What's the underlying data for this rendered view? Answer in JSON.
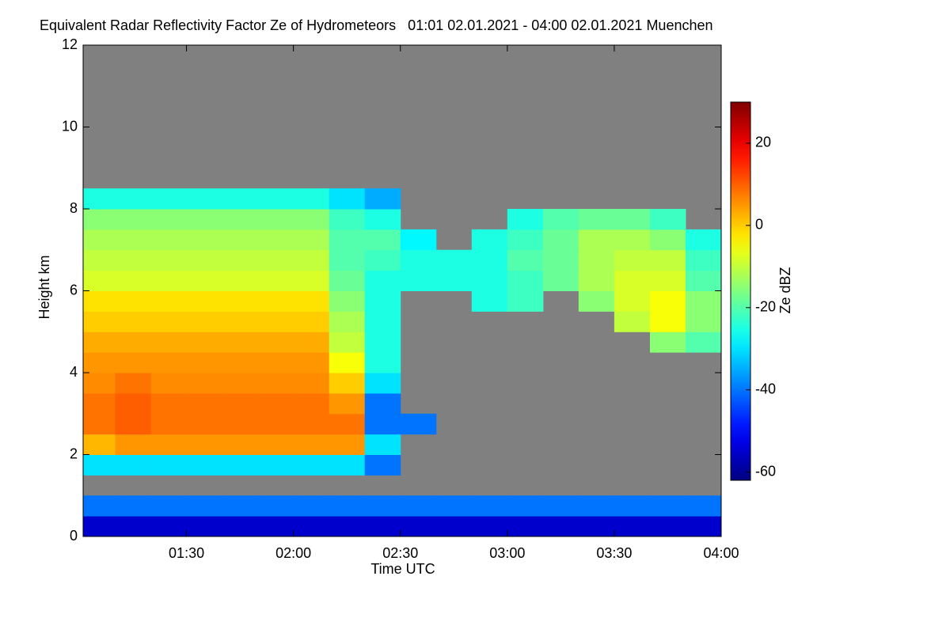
{
  "chart_data": {
    "type": "heatmap",
    "title": "Equivalent Radar Reflectivity Factor Ze of Hydrometeors   01:01 02.01.2021 - 04:00 02.01.2021 Muenchen",
    "xlabel": "Time UTC",
    "ylabel": "Height km",
    "colorbar_label": "Ze dBZ",
    "colormap": "jet",
    "missing_color": "#808080",
    "xlim": [
      1.0167,
      4.0
    ],
    "ylim": [
      0,
      12
    ],
    "xticks": [
      {
        "value": 1.5,
        "label": "01:30"
      },
      {
        "value": 2.0,
        "label": "02:00"
      },
      {
        "value": 2.5,
        "label": "02:30"
      },
      {
        "value": 3.0,
        "label": "03:00"
      },
      {
        "value": 3.5,
        "label": "03:30"
      },
      {
        "value": 4.0,
        "label": "04:00"
      }
    ],
    "yticks": [
      0,
      2,
      4,
      6,
      8,
      10,
      12
    ],
    "clim": [
      -62,
      30
    ],
    "cticks": [
      -60,
      -40,
      -20,
      0,
      20
    ],
    "xbins": [
      1.0167,
      1.1667,
      1.3333,
      1.5,
      1.6667,
      1.8333,
      2.0,
      2.1667,
      2.3333,
      2.5,
      2.6667,
      2.8333,
      3.0,
      3.1667,
      3.3333,
      3.5,
      3.6667,
      3.8333,
      4.0
    ],
    "ybins": [
      0,
      0.5,
      1,
      1.5,
      2,
      2.5,
      3,
      3.5,
      4,
      4.5,
      5,
      5.5,
      6,
      6.5,
      7,
      7.5,
      8,
      8.5,
      9
    ],
    "z": [
      [
        -55,
        -55,
        -55,
        -55,
        -55,
        -55,
        -55,
        -55,
        -55,
        -55,
        -55,
        -55,
        -55,
        -55,
        -55,
        -55,
        -55,
        -55
      ],
      [
        -40,
        -40,
        -40,
        -40,
        -40,
        -40,
        -40,
        -40,
        -40,
        -40,
        -40,
        -40,
        -40,
        -40,
        -40,
        -40,
        -40,
        -40
      ],
      [
        null,
        null,
        null,
        null,
        null,
        null,
        null,
        null,
        null,
        null,
        null,
        null,
        null,
        null,
        null,
        null,
        null,
        null
      ],
      [
        -30,
        -30,
        -30,
        -30,
        -30,
        -30,
        -30,
        -30,
        -40,
        null,
        null,
        null,
        null,
        null,
        null,
        null,
        null,
        null
      ],
      [
        2,
        5,
        5,
        5,
        5,
        5,
        5,
        5,
        -30,
        null,
        null,
        null,
        null,
        null,
        null,
        null,
        null,
        null
      ],
      [
        8,
        10,
        8,
        8,
        8,
        8,
        8,
        8,
        -40,
        -40,
        null,
        null,
        null,
        null,
        null,
        null,
        null,
        null
      ],
      [
        8,
        10,
        8,
        8,
        8,
        8,
        8,
        5,
        -40,
        null,
        null,
        null,
        null,
        null,
        null,
        null,
        null,
        null
      ],
      [
        6,
        8,
        6,
        6,
        6,
        6,
        6,
        0,
        -30,
        null,
        null,
        null,
        null,
        null,
        null,
        null,
        null,
        null
      ],
      [
        5,
        5,
        5,
        5,
        5,
        5,
        5,
        -5,
        -25,
        null,
        null,
        null,
        null,
        null,
        null,
        null,
        null,
        null
      ],
      [
        3,
        3,
        3,
        3,
        3,
        3,
        3,
        -10,
        -25,
        null,
        null,
        null,
        null,
        null,
        null,
        null,
        -15,
        -20
      ],
      [
        0,
        0,
        0,
        0,
        0,
        0,
        0,
        -12,
        -25,
        null,
        null,
        null,
        null,
        null,
        null,
        -10,
        -5,
        -15
      ],
      [
        -2,
        -2,
        -2,
        -2,
        -2,
        -2,
        -2,
        -15,
        -25,
        null,
        null,
        -25,
        -22,
        null,
        -15,
        -8,
        -5,
        -15
      ],
      [
        -8,
        -8,
        -8,
        -8,
        -8,
        -8,
        -8,
        -18,
        -25,
        -25,
        -25,
        -25,
        -22,
        -18,
        -12,
        -8,
        -8,
        -20
      ],
      [
        -10,
        -10,
        -10,
        -10,
        -10,
        -10,
        -10,
        -20,
        -22,
        -25,
        -25,
        -25,
        -20,
        -18,
        -12,
        -10,
        -10,
        -22
      ],
      [
        -12,
        -12,
        -12,
        -12,
        -12,
        -12,
        -12,
        -20,
        -20,
        -28,
        null,
        -25,
        -22,
        -18,
        -12,
        -12,
        -15,
        -25
      ],
      [
        -15,
        -15,
        -15,
        -15,
        -15,
        -15,
        -15,
        -22,
        -25,
        null,
        null,
        null,
        -25,
        -20,
        -18,
        -18,
        -22,
        null
      ],
      [
        -25,
        -25,
        -25,
        -25,
        -25,
        -25,
        -25,
        -30,
        -35,
        null,
        null,
        null,
        null,
        null,
        null,
        null,
        null,
        null
      ],
      [
        null,
        null,
        null,
        null,
        null,
        null,
        null,
        null,
        null,
        null,
        null,
        null,
        null,
        null,
        null,
        null,
        null,
        null
      ]
    ]
  }
}
